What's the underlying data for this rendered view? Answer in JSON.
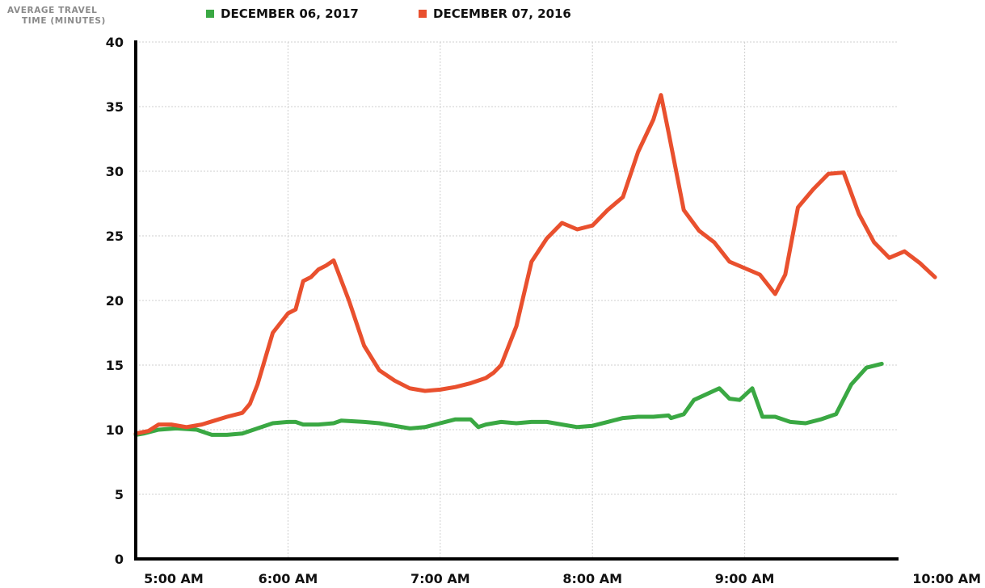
{
  "chart_data": {
    "type": "line",
    "ylabel_lines": [
      "AVERAGE TRAVEL",
      "TIME (MINUTES)"
    ],
    "ylim": [
      0,
      40
    ],
    "yticks": [
      0,
      5,
      10,
      15,
      20,
      25,
      30,
      35,
      40
    ],
    "xlim": [
      0,
      300
    ],
    "xticks": [
      {
        "minute": 0,
        "label": "5:00 AM"
      },
      {
        "minute": 60,
        "label": "6:00 AM"
      },
      {
        "minute": 120,
        "label": "7:00 AM"
      },
      {
        "minute": 180,
        "label": "8:00 AM"
      },
      {
        "minute": 240,
        "label": "9:00 AM"
      },
      {
        "minute": 300,
        "label": "10:00 AM"
      }
    ],
    "grid": true,
    "legend_position": "top",
    "series": [
      {
        "name": "DECEMBER 06, 2017",
        "color": "#3aa843",
        "points": [
          [
            0,
            9.6
          ],
          [
            3,
            9.7
          ],
          [
            9,
            10.0
          ],
          [
            16,
            10.1
          ],
          [
            24,
            10.0
          ],
          [
            30,
            9.6
          ],
          [
            36,
            9.6
          ],
          [
            42,
            9.7
          ],
          [
            48,
            10.1
          ],
          [
            54,
            10.5
          ],
          [
            60,
            10.6
          ],
          [
            63,
            10.6
          ],
          [
            66,
            10.4
          ],
          [
            72,
            10.4
          ],
          [
            78,
            10.5
          ],
          [
            81,
            10.7
          ],
          [
            90,
            10.6
          ],
          [
            96,
            10.5
          ],
          [
            102,
            10.3
          ],
          [
            108,
            10.1
          ],
          [
            114,
            10.2
          ],
          [
            120,
            10.5
          ],
          [
            126,
            10.8
          ],
          [
            132,
            10.8
          ],
          [
            135,
            10.2
          ],
          [
            138,
            10.4
          ],
          [
            144,
            10.6
          ],
          [
            150,
            10.5
          ],
          [
            156,
            10.6
          ],
          [
            162,
            10.6
          ],
          [
            168,
            10.4
          ],
          [
            174,
            10.2
          ],
          [
            180,
            10.3
          ],
          [
            186,
            10.6
          ],
          [
            192,
            10.9
          ],
          [
            198,
            11.0
          ],
          [
            204,
            11.0
          ],
          [
            210,
            11.1
          ],
          [
            211,
            10.9
          ],
          [
            216,
            11.2
          ],
          [
            220,
            12.3
          ],
          [
            230,
            13.2
          ],
          [
            234,
            12.4
          ],
          [
            238,
            12.3
          ],
          [
            243,
            13.2
          ],
          [
            247,
            11.0
          ],
          [
            252,
            11.0
          ],
          [
            258,
            10.6
          ],
          [
            264,
            10.5
          ],
          [
            270,
            10.8
          ],
          [
            276,
            11.2
          ],
          [
            282,
            13.5
          ],
          [
            288,
            14.8
          ],
          [
            294,
            15.1
          ]
        ]
      },
      {
        "name": "DECEMBER 07, 2016",
        "color": "#e9502e",
        "points": [
          [
            0,
            9.7
          ],
          [
            5,
            9.9
          ],
          [
            9,
            10.4
          ],
          [
            14,
            10.4
          ],
          [
            20,
            10.2
          ],
          [
            26,
            10.4
          ],
          [
            31,
            10.7
          ],
          [
            36,
            11.0
          ],
          [
            42,
            11.3
          ],
          [
            45,
            12.0
          ],
          [
            48,
            13.5
          ],
          [
            54,
            17.5
          ],
          [
            60,
            19.0
          ],
          [
            63,
            19.3
          ],
          [
            66,
            21.5
          ],
          [
            69,
            21.8
          ],
          [
            72,
            22.4
          ],
          [
            75,
            22.7
          ],
          [
            78,
            23.1
          ],
          [
            84,
            20.0
          ],
          [
            90,
            16.5
          ],
          [
            96,
            14.6
          ],
          [
            102,
            13.8
          ],
          [
            108,
            13.2
          ],
          [
            114,
            13.0
          ],
          [
            120,
            13.1
          ],
          [
            126,
            13.3
          ],
          [
            132,
            13.6
          ],
          [
            138,
            14.0
          ],
          [
            141,
            14.4
          ],
          [
            144,
            15.0
          ],
          [
            150,
            18.0
          ],
          [
            156,
            23.0
          ],
          [
            162,
            24.8
          ],
          [
            168,
            26.0
          ],
          [
            174,
            25.5
          ],
          [
            180,
            25.8
          ],
          [
            186,
            27.0
          ],
          [
            192,
            28.0
          ],
          [
            198,
            31.5
          ],
          [
            204,
            34.0
          ],
          [
            207,
            35.9
          ],
          [
            210,
            33.0
          ],
          [
            216,
            27.0
          ],
          [
            222,
            25.4
          ],
          [
            228,
            24.5
          ],
          [
            234,
            23.0
          ],
          [
            240,
            22.5
          ],
          [
            246,
            22.0
          ],
          [
            252,
            20.5
          ],
          [
            256,
            22.0
          ],
          [
            261,
            27.2
          ],
          [
            267,
            28.6
          ],
          [
            273,
            29.8
          ],
          [
            279,
            29.9
          ],
          [
            285,
            26.7
          ],
          [
            291,
            24.5
          ],
          [
            297,
            23.3
          ],
          [
            303,
            23.8
          ],
          [
            309,
            22.9
          ],
          [
            315,
            21.8
          ]
        ]
      }
    ]
  }
}
